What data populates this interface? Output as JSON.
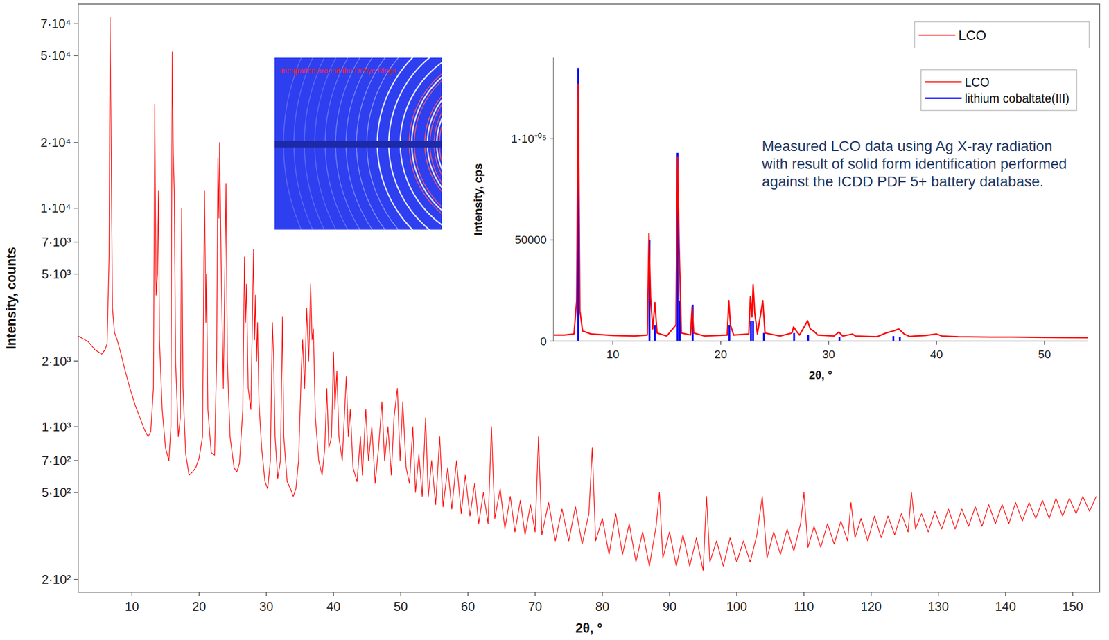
{
  "chart_data": [
    {
      "type": "line",
      "x_label": "2θ, °",
      "y_label": "Intensity, counts",
      "log": "y",
      "grid": false,
      "legend": "top-right",
      "xlim": [
        2,
        154
      ],
      "ylim": [
        175,
        86000
      ],
      "xticks": [
        10,
        20,
        30,
        40,
        50,
        60,
        70,
        80,
        90,
        100,
        110,
        120,
        130,
        140,
        150
      ],
      "yticks": [
        {
          "value": 200,
          "label": "2·10²"
        },
        {
          "value": 500,
          "label": "5·10²"
        },
        {
          "value": 700,
          "label": "7·10²"
        },
        {
          "value": 1000,
          "label": "1·10³"
        },
        {
          "value": 2000,
          "label": "2·10³"
        },
        {
          "value": 5000,
          "label": "5·10³"
        },
        {
          "value": 7000,
          "label": "7·10³"
        },
        {
          "value": 10000,
          "label": "1·10⁴"
        },
        {
          "value": 20000,
          "label": "2·10⁴"
        },
        {
          "value": 50000,
          "label": "5·10⁴"
        },
        {
          "value": 70000,
          "label": "7·10⁴"
        }
      ],
      "series": [
        {
          "name": "LCO",
          "color": "#ff0000",
          "x": [
            2,
            2.5,
            3,
            3.5,
            4,
            4.5,
            5,
            5.5,
            6,
            6.3,
            6.6,
            6.75,
            6.9,
            7.1,
            7.4,
            7.8,
            8.3,
            9,
            9.7,
            10.5,
            11.2,
            11.8,
            12.4,
            12.8,
            13.2,
            13.4,
            13.6,
            13.8,
            13.95,
            14.1,
            14.5,
            15,
            15.5,
            15.8,
            16,
            16.15,
            16.3,
            16.5,
            16.9,
            17.2,
            17.4,
            17.6,
            18,
            18.5,
            19,
            19.5,
            20,
            20.5,
            20.8,
            21,
            21.1,
            21.3,
            21.8,
            22.3,
            22.6,
            22.8,
            22.95,
            23.05,
            23.3,
            23.6,
            24,
            24.2,
            24.6,
            25.2,
            25.6,
            26,
            26.5,
            26.75,
            26.9,
            27.05,
            27.3,
            27.7,
            28.1,
            28.25,
            28.4,
            28.55,
            28.7,
            28.9,
            29.3,
            29.8,
            30.2,
            30.6,
            30.9,
            31.1,
            31.3,
            31.7,
            32.1,
            32.4,
            32.6,
            33.1,
            33.6,
            34,
            34.4,
            34.8,
            35.2,
            35.4,
            35.7,
            36,
            36.3,
            36.6,
            36.8,
            37,
            37.3,
            37.8,
            38.3,
            38.7,
            39,
            39.3,
            39.7,
            40,
            40.2,
            40.5,
            40.8,
            41.3,
            41.9,
            42.2,
            42.5,
            42.9,
            43.5,
            44,
            44.3,
            44.8,
            45.2,
            45.7,
            46.2,
            46.7,
            47.2,
            47.6,
            48.1,
            48.6,
            49,
            49.5,
            49.9,
            50.3,
            50.8,
            51.3,
            51.8,
            52.2,
            52.7,
            53.2,
            53.7,
            54.1,
            54.6,
            55.2,
            55.8,
            56.3,
            57,
            57.6,
            58.3,
            59,
            59.6,
            60.3,
            61,
            61.6,
            62.3,
            63,
            63.5,
            64,
            64.8,
            65.5,
            66.3,
            67,
            67.8,
            68.5,
            69.3,
            70,
            70.5,
            71,
            72,
            73,
            74,
            75,
            76,
            77,
            78,
            78.5,
            79,
            80,
            81,
            82,
            83,
            84,
            85,
            86,
            87,
            88,
            88.5,
            89,
            90,
            91,
            92,
            93,
            94,
            95,
            95.5,
            96,
            97,
            98,
            99,
            100,
            101,
            102,
            103,
            103.8,
            104.5,
            105.5,
            106.5,
            107.5,
            108.5,
            109.5,
            110,
            110.6,
            111.5,
            112.5,
            113.5,
            114.5,
            115.5,
            116.5,
            117,
            117.6,
            118.5,
            119.5,
            120.5,
            121.5,
            122.5,
            123.5,
            124.5,
            125.5,
            126,
            126.6,
            127.5,
            128.5,
            129.5,
            130.5,
            131.5,
            132.5,
            133.5,
            134.5,
            135.5,
            136.5,
            137.5,
            138.5,
            139.5,
            140.5,
            141.5,
            142.5,
            143.5,
            144.5,
            145.5,
            146.5,
            147.5,
            148.5,
            149.5,
            150.5,
            151.5,
            152.5,
            153.5
          ],
          "values": [
            2600,
            2550,
            2500,
            2450,
            2350,
            2250,
            2200,
            2150,
            2250,
            2400,
            6000,
            75000,
            20000,
            3500,
            2700,
            2500,
            2200,
            1800,
            1500,
            1250,
            1100,
            980,
            900,
            950,
            1500,
            30000,
            4000,
            5000,
            12000,
            2500,
            1200,
            800,
            700,
            1000,
            52000,
            18000,
            12000,
            2000,
            900,
            1100,
            10000,
            1500,
            750,
            600,
            620,
            650,
            720,
            900,
            12000,
            3000,
            5000,
            1200,
            760,
            740,
            2000,
            17000,
            9000,
            20000,
            5000,
            1500,
            13000,
            2000,
            900,
            650,
            620,
            680,
            1200,
            6000,
            3000,
            4500,
            1500,
            1200,
            6500,
            2500,
            4000,
            2000,
            3000,
            1300,
            800,
            560,
            520,
            700,
            3000,
            2000,
            900,
            580,
            700,
            3200,
            900,
            560,
            520,
            480,
            520,
            700,
            1800,
            2500,
            1500,
            3500,
            2000,
            4500,
            2500,
            2800,
            1100,
            700,
            600,
            800,
            1500,
            800,
            900,
            2200,
            1200,
            1800,
            900,
            700,
            1700,
            900,
            1200,
            650,
            560,
            900,
            600,
            1200,
            700,
            1000,
            550,
            800,
            1300,
            700,
            1000,
            600,
            1100,
            1500,
            700,
            1300,
            650,
            550,
            1000,
            500,
            750,
            480,
            1100,
            480,
            700,
            440,
            900,
            430,
            650,
            420,
            700,
            400,
            600,
            390,
            550,
            360,
            500,
            360,
            1000,
            380,
            520,
            340,
            480,
            330,
            460,
            320,
            440,
            330,
            900,
            320,
            450,
            300,
            420,
            300,
            430,
            290,
            400,
            800,
            300,
            380,
            260,
            400,
            260,
            360,
            240,
            330,
            230,
            350,
            500,
            250,
            330,
            230,
            320,
            230,
            310,
            220,
            480,
            240,
            300,
            230,
            310,
            240,
            300,
            240,
            320,
            480,
            250,
            330,
            260,
            340,
            270,
            360,
            500,
            280,
            350,
            280,
            360,
            290,
            370,
            300,
            450,
            310,
            380,
            300,
            390,
            310,
            390,
            320,
            400,
            330,
            500,
            340,
            400,
            330,
            410,
            340,
            420,
            340,
            420,
            350,
            430,
            350,
            440,
            360,
            440,
            360,
            450,
            370,
            450,
            380,
            460,
            380,
            470,
            390,
            470,
            400,
            480,
            410,
            480
          ]
        }
      ]
    },
    {
      "type": "line",
      "x_label": "2θ, °",
      "y_label": "Intensity, cps",
      "grid": false,
      "legend": "top-right",
      "annotation": "Measured LCO data using Ag X-ray radiation with result of solid form identification performed against the ICDD PDF 5+ battery database.",
      "xlim": [
        4.5,
        54
      ],
      "ylim": [
        0,
        140000
      ],
      "xticks": [
        10,
        20,
        30,
        40,
        50
      ],
      "yticks": [
        0,
        50000,
        {
          "value": 100000,
          "label": "1·10⁺⁰⁵"
        }
      ],
      "series": [
        {
          "name": "LCO",
          "color": "#ff0000",
          "x": [
            4.5,
            5.5,
            6.4,
            6.65,
            6.8,
            6.95,
            7.2,
            8,
            10,
            12,
            13.2,
            13.35,
            13.5,
            13.7,
            13.9,
            14.1,
            15,
            15.85,
            16,
            16.15,
            16.35,
            17.2,
            17.35,
            17.5,
            18.5,
            20.6,
            20.75,
            20.9,
            21.2,
            22.6,
            22.75,
            22.9,
            23,
            23.15,
            23.4,
            23.9,
            24.1,
            25.5,
            26.6,
            26.75,
            27,
            27.3,
            28.05,
            28.3,
            28.6,
            29,
            30.5,
            30.95,
            31.3,
            32.2,
            32.5,
            34.5,
            35.3,
            36,
            36.5,
            37,
            37.5,
            39,
            40,
            40.5,
            42,
            45,
            47,
            50,
            54
          ],
          "values": [
            3000,
            3000,
            3500,
            20000,
            127000,
            15000,
            5000,
            3500,
            2800,
            2500,
            3000,
            53000,
            22000,
            6000,
            19000,
            4000,
            2500,
            8000,
            91000,
            47000,
            4000,
            3000,
            17000,
            4000,
            2500,
            3000,
            20000,
            8000,
            3000,
            3500,
            22000,
            12000,
            28000,
            14000,
            3500,
            20000,
            4000,
            2500,
            4000,
            7000,
            5000,
            3000,
            10000,
            6000,
            5000,
            3000,
            2500,
            4500,
            2500,
            3500,
            2500,
            2200,
            4000,
            5000,
            6000,
            3500,
            2300,
            2800,
            3500,
            2500,
            2200,
            2000,
            2000,
            1800,
            1700
          ]
        },
        {
          "name": "lithium cobaltate(III)",
          "color": "#0000ff",
          "type": "stick",
          "x": [
            6.8,
            13.4,
            13.9,
            16,
            16.2,
            17.4,
            20.8,
            22.8,
            23,
            24,
            26.8,
            28.1,
            31,
            36,
            36.6
          ],
          "values": [
            135000,
            50000,
            8000,
            93000,
            20000,
            18000,
            8000,
            10000,
            10000,
            4000,
            4000,
            3000,
            2000,
            2500,
            2000
          ]
        }
      ]
    }
  ],
  "image": {
    "label": "Integration around the Debye Rings"
  }
}
